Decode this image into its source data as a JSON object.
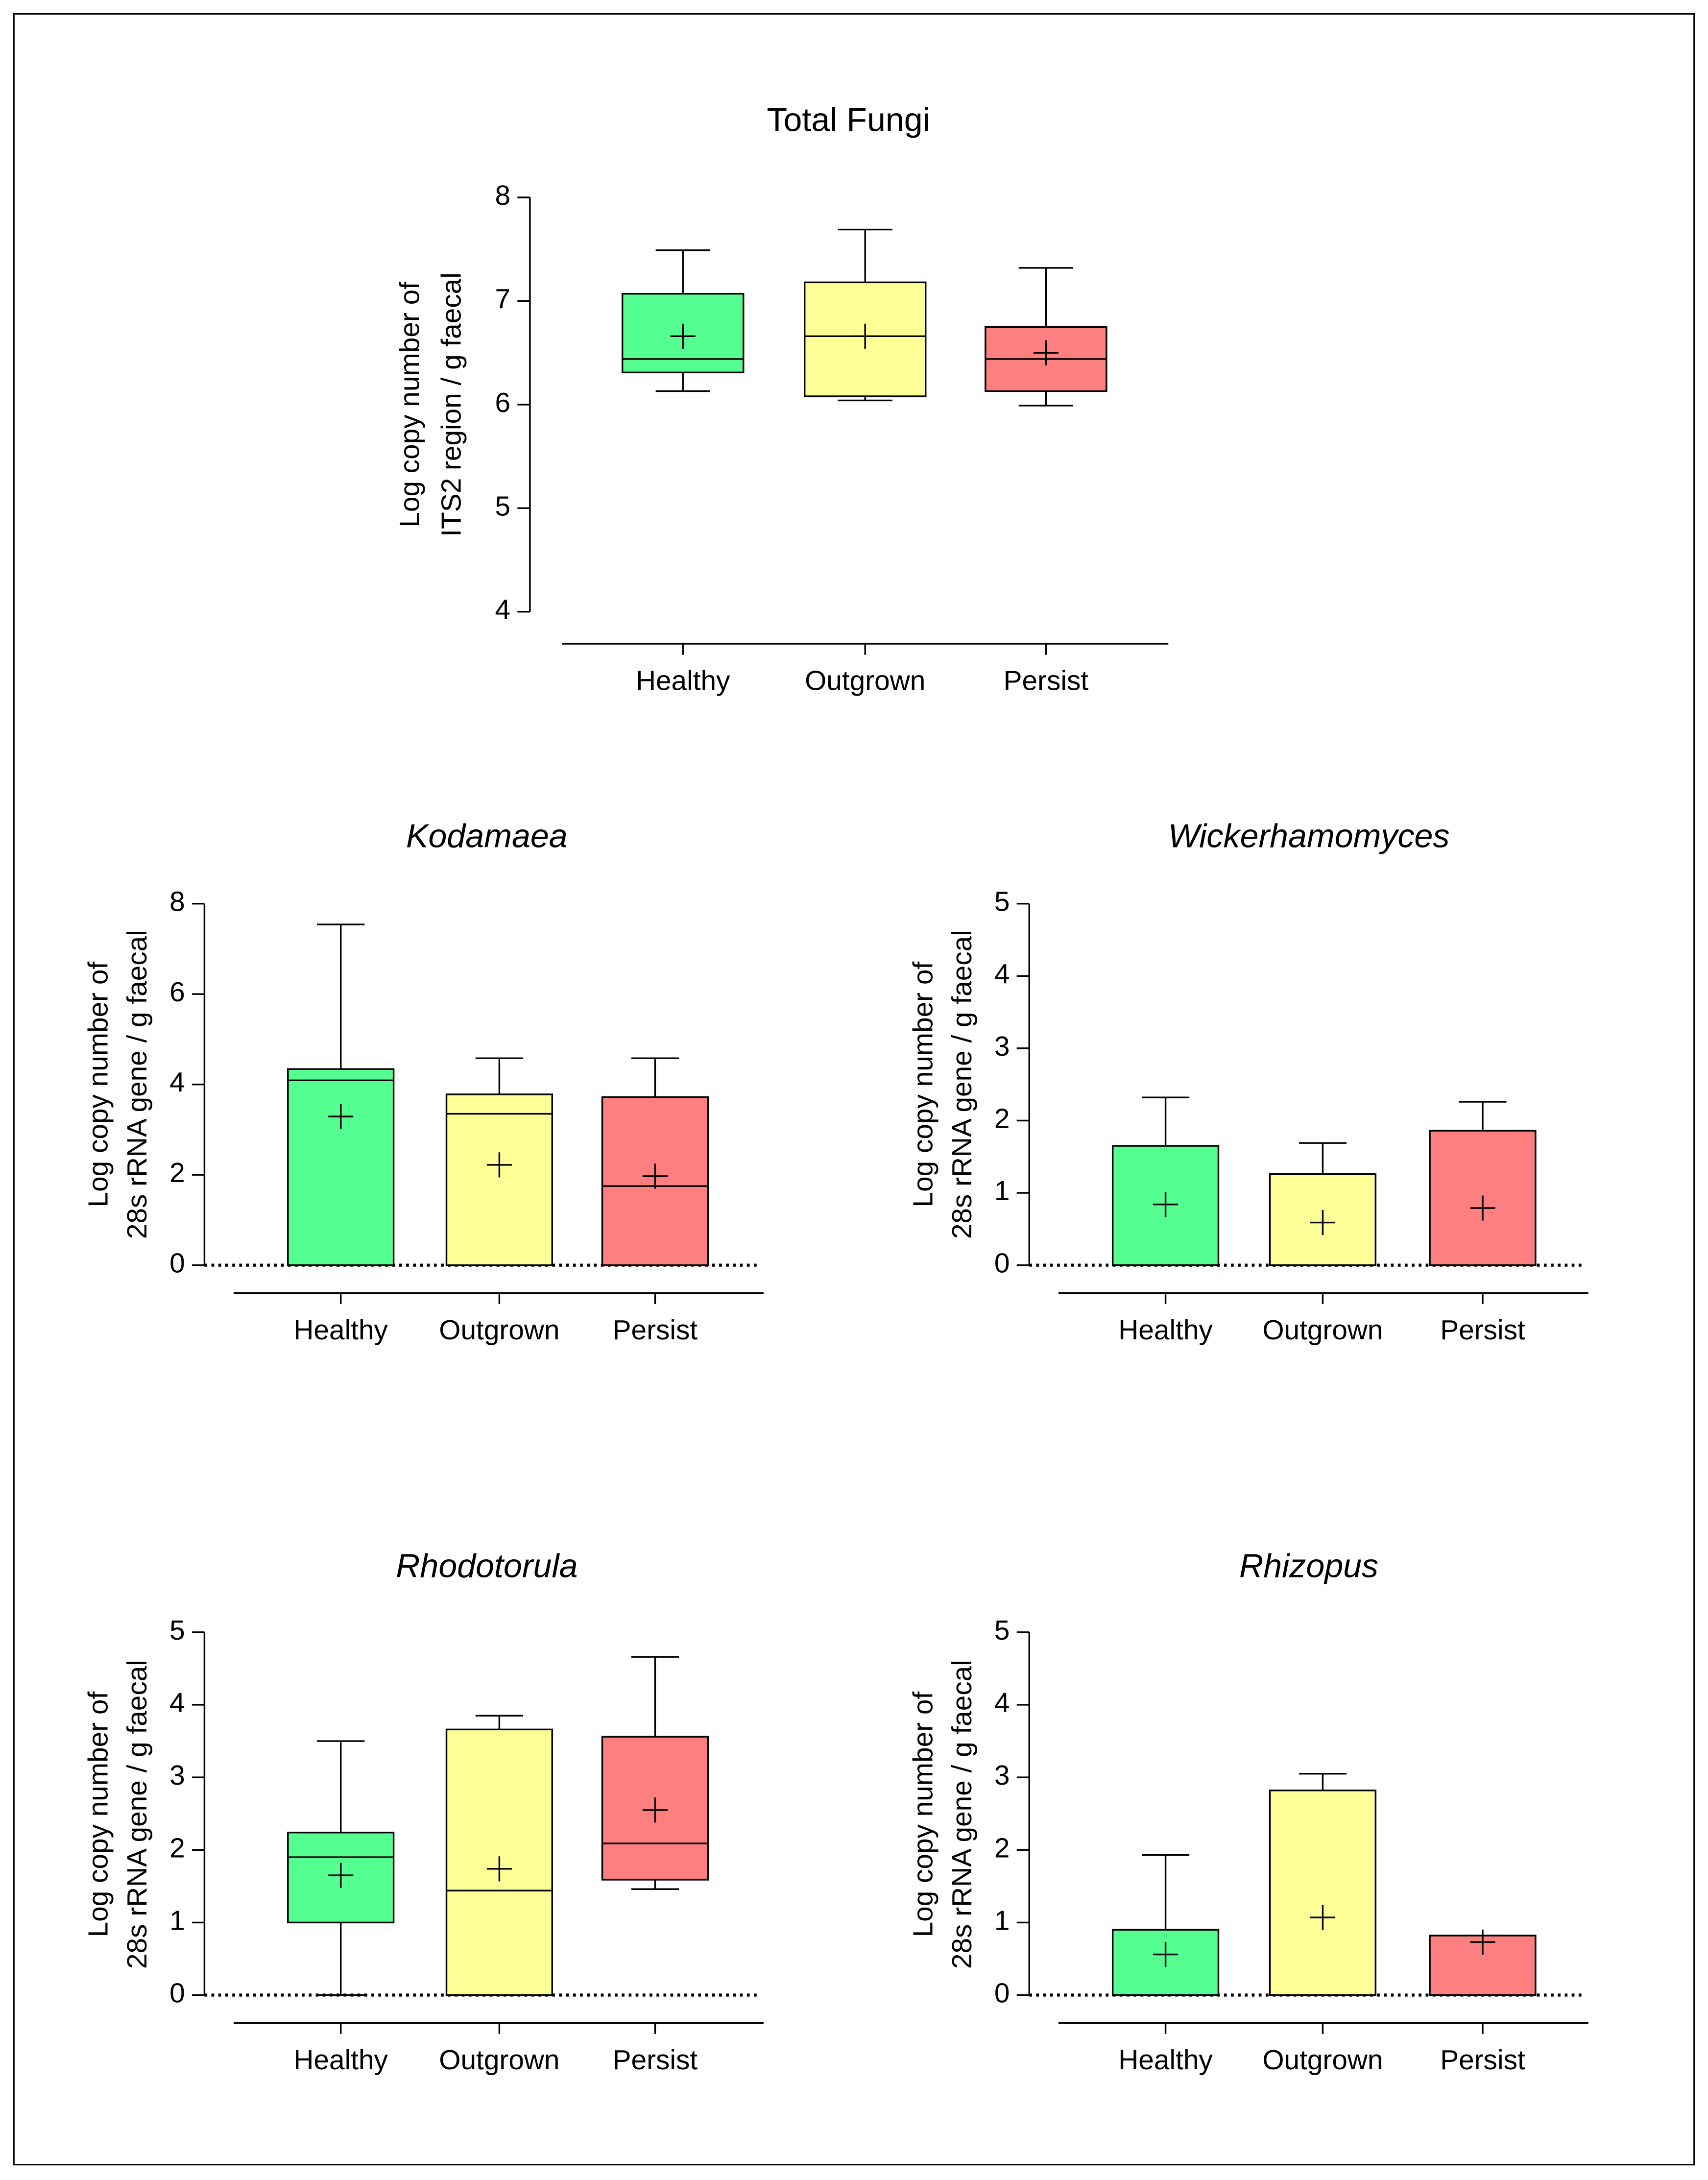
{
  "chart_data": [
    {
      "type": "box",
      "title": "Total Fungi",
      "title_italic": false,
      "ylabel": [
        "Log copy number of",
        "ITS2 region / g faecal"
      ],
      "categories": [
        "Healthy",
        "Outgrown",
        "Persist"
      ],
      "colors": [
        "#55fe90",
        "#fefe96",
        "#fe7f7f"
      ],
      "boxes": [
        {
          "min": 6.13,
          "q1": 6.31,
          "median": 6.44,
          "q3": 7.07,
          "max": 7.49,
          "mean": 6.66
        },
        {
          "min": 6.04,
          "q1": 6.08,
          "median": 6.66,
          "q3": 7.18,
          "max": 7.69,
          "mean": 6.66
        },
        {
          "min": 5.99,
          "q1": 6.13,
          "median": 6.44,
          "q3": 6.75,
          "max": 7.32,
          "mean": 6.5
        }
      ],
      "ylim": [
        4,
        8
      ],
      "yticks": [
        4,
        5,
        6,
        7,
        8
      ],
      "zero_line": false
    },
    {
      "type": "box",
      "title": "Kodamaea",
      "title_italic": true,
      "ylabel": [
        "Log copy number of",
        "28s rRNA gene / g faecal"
      ],
      "categories": [
        "Healthy",
        "Outgrown",
        "Persist"
      ],
      "colors": [
        "#55fe90",
        "#fefe96",
        "#fe7f7f"
      ],
      "boxes": [
        {
          "min": 0,
          "q1": 0,
          "median": 4.09,
          "q3": 4.34,
          "max": 7.54,
          "mean": 3.29
        },
        {
          "min": 0,
          "q1": 0,
          "median": 3.35,
          "q3": 3.78,
          "max": 4.58,
          "mean": 2.22
        },
        {
          "min": 0,
          "q1": 0,
          "median": 1.75,
          "q3": 3.72,
          "max": 4.58,
          "mean": 1.97
        }
      ],
      "ylim": [
        0,
        8
      ],
      "yticks": [
        0,
        2,
        4,
        6,
        8
      ],
      "zero_line": true
    },
    {
      "type": "box",
      "title": "Wickerhamomyces",
      "title_italic": true,
      "ylabel": [
        "Log copy number of",
        "28s rRNA gene / g faecal"
      ],
      "categories": [
        "Healthy",
        "Outgrown",
        "Persist"
      ],
      "colors": [
        "#55fe90",
        "#fefe96",
        "#fe7f7f"
      ],
      "boxes": [
        {
          "min": 0,
          "q1": 0,
          "median": 0,
          "q3": 1.65,
          "max": 2.32,
          "mean": 0.84
        },
        {
          "min": 0,
          "q1": 0,
          "median": 0,
          "q3": 1.26,
          "max": 1.69,
          "mean": 0.59
        },
        {
          "min": 0,
          "q1": 0,
          "median": 0,
          "q3": 1.86,
          "max": 2.26,
          "mean": 0.79
        }
      ],
      "ylim": [
        0,
        5
      ],
      "yticks": [
        0,
        1,
        2,
        3,
        4,
        5
      ],
      "zero_line": true
    },
    {
      "type": "box",
      "title": "Rhodotorula",
      "title_italic": true,
      "ylabel": [
        "Log copy number of",
        "28s rRNA gene / g faecal"
      ],
      "categories": [
        "Healthy",
        "Outgrown",
        "Persist"
      ],
      "colors": [
        "#55fe90",
        "#fefe96",
        "#fe7f7f"
      ],
      "boxes": [
        {
          "min": 0,
          "q1": 1,
          "median": 1.9,
          "q3": 2.24,
          "max": 3.5,
          "mean": 1.65
        },
        {
          "min": 0,
          "q1": 0,
          "median": 1.44,
          "q3": 3.66,
          "max": 3.85,
          "mean": 1.74
        },
        {
          "min": 1.46,
          "q1": 1.59,
          "median": 2.09,
          "q3": 3.56,
          "max": 4.66,
          "mean": 2.55
        }
      ],
      "ylim": [
        0,
        5
      ],
      "yticks": [
        0,
        1,
        2,
        3,
        4,
        5
      ],
      "zero_line": true
    },
    {
      "type": "box",
      "title": "Rhizopus",
      "title_italic": true,
      "ylabel": [
        "Log copy number of",
        "28s rRNA gene / g faecal"
      ],
      "categories": [
        "Healthy",
        "Outgrown",
        "Persist"
      ],
      "colors": [
        "#55fe90",
        "#fefe96",
        "#fe7f7f"
      ],
      "boxes": [
        {
          "min": 0,
          "q1": 0,
          "median": 0,
          "q3": 0.9,
          "max": 1.93,
          "mean": 0.56
        },
        {
          "min": 0,
          "q1": 0,
          "median": 0,
          "q3": 2.82,
          "max": 3.05,
          "mean": 1.07
        },
        {
          "min": 0,
          "q1": 0,
          "median": 0,
          "q3": 0.82,
          "max": 0.82,
          "mean": 0.73
        }
      ],
      "ylim": [
        0,
        5
      ],
      "yticks": [
        0,
        1,
        2,
        3,
        4,
        5
      ],
      "zero_line": true
    }
  ]
}
